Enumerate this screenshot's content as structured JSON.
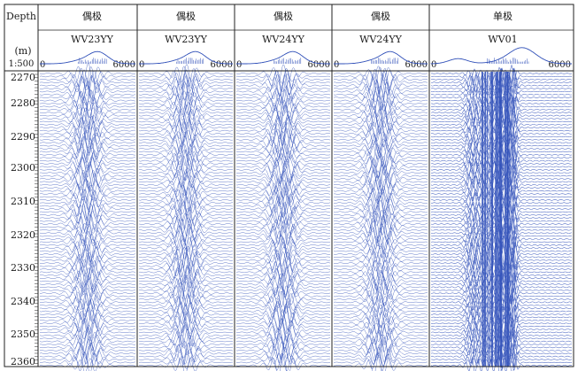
{
  "header": {
    "depth_label": "Depth",
    "unit_label": "(m)",
    "scale_label": "1:500"
  },
  "tracks": [
    {
      "mode": "偶极",
      "curve": "WV23YY",
      "axis_min": "0",
      "axis_max": "6000"
    },
    {
      "mode": "偶极",
      "curve": "WV23YY",
      "axis_min": "0",
      "axis_max": "6000"
    },
    {
      "mode": "偶极",
      "curve": "WV24YY",
      "axis_min": "0",
      "axis_max": "6000"
    },
    {
      "mode": "偶极",
      "curve": "WV24YY",
      "axis_min": "0",
      "axis_max": "6000"
    },
    {
      "mode": "单极",
      "curve": "WV01",
      "axis_min": "0",
      "axis_max": "6000"
    }
  ],
  "depth_ticks": [
    "2270",
    "2280",
    "2290",
    "2300",
    "2310",
    "2320",
    "2330",
    "2340",
    "2350",
    "2360"
  ],
  "colors": {
    "wave": "#2f4fb8",
    "grid": "#222222",
    "background": "#ffffff"
  }
}
